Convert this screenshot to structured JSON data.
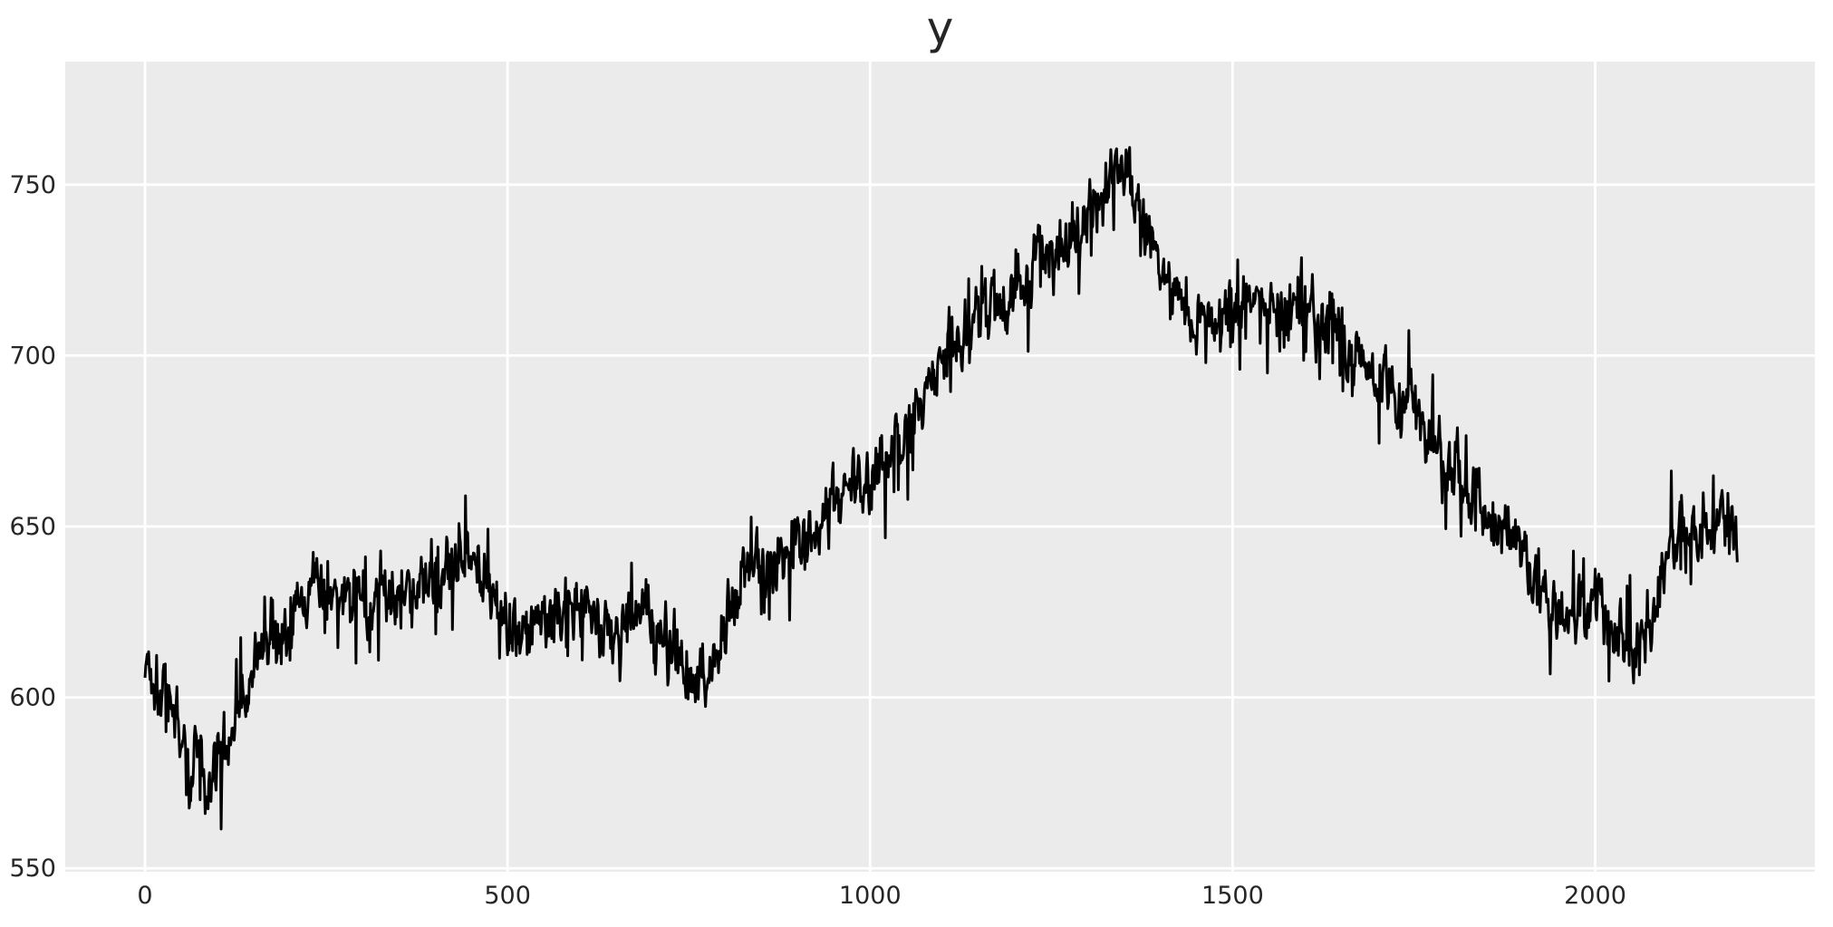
{
  "chart_data": {
    "type": "line",
    "title": "y",
    "xlabel": "",
    "ylabel": "",
    "legend": null,
    "grid_on": true,
    "x_ticks": [
      0,
      500,
      1000,
      1500,
      2000
    ],
    "y_ticks": [
      550,
      600,
      650,
      700,
      750
    ],
    "xlim": [
      -110,
      2303
    ],
    "ylim": [
      549,
      786
    ],
    "n_points": 2197,
    "x_start": 0,
    "x_step": 1,
    "series": [
      {
        "name": "y",
        "color": "#000000",
        "linewidth": 3,
        "trend_keypoints": [
          [
            0,
            612
          ],
          [
            15,
            606
          ],
          [
            30,
            600
          ],
          [
            45,
            594
          ],
          [
            55,
            585
          ],
          [
            62,
            574
          ],
          [
            70,
            583
          ],
          [
            80,
            578
          ],
          [
            90,
            572
          ],
          [
            100,
            582
          ],
          [
            115,
            590
          ],
          [
            130,
            598
          ],
          [
            145,
            605
          ],
          [
            160,
            612
          ],
          [
            175,
            616
          ],
          [
            190,
            618
          ],
          [
            205,
            622
          ],
          [
            220,
            628
          ],
          [
            235,
            632
          ],
          [
            250,
            626
          ],
          [
            265,
            628
          ],
          [
            280,
            632
          ],
          [
            295,
            630
          ],
          [
            310,
            628
          ],
          [
            325,
            633
          ],
          [
            340,
            630
          ],
          [
            355,
            628
          ],
          [
            370,
            630
          ],
          [
            385,
            633
          ],
          [
            400,
            636
          ],
          [
            415,
            638
          ],
          [
            430,
            643
          ],
          [
            445,
            646
          ],
          [
            460,
            640
          ],
          [
            475,
            635
          ],
          [
            490,
            628
          ],
          [
            505,
            620
          ],
          [
            520,
            616
          ],
          [
            535,
            620
          ],
          [
            550,
            624
          ],
          [
            565,
            626
          ],
          [
            580,
            628
          ],
          [
            595,
            630
          ],
          [
            610,
            628
          ],
          [
            625,
            624
          ],
          [
            640,
            620
          ],
          [
            655,
            617
          ],
          [
            670,
            622
          ],
          [
            685,
            626
          ],
          [
            700,
            620
          ],
          [
            715,
            617
          ],
          [
            730,
            613
          ],
          [
            745,
            610
          ],
          [
            760,
            607
          ],
          [
            775,
            612
          ],
          [
            790,
            616
          ],
          [
            805,
            625
          ],
          [
            820,
            632
          ],
          [
            835,
            638
          ],
          [
            850,
            641
          ],
          [
            865,
            637
          ],
          [
            880,
            641
          ],
          [
            895,
            644
          ],
          [
            910,
            647
          ],
          [
            925,
            650
          ],
          [
            940,
            653
          ],
          [
            955,
            658
          ],
          [
            970,
            663
          ],
          [
            985,
            660
          ],
          [
            1000,
            665
          ],
          [
            1015,
            668
          ],
          [
            1030,
            672
          ],
          [
            1045,
            677
          ],
          [
            1060,
            682
          ],
          [
            1075,
            688
          ],
          [
            1090,
            695
          ],
          [
            1105,
            700
          ],
          [
            1120,
            704
          ],
          [
            1135,
            708
          ],
          [
            1150,
            712
          ],
          [
            1165,
            716
          ],
          [
            1180,
            713
          ],
          [
            1195,
            718
          ],
          [
            1210,
            722
          ],
          [
            1225,
            727
          ],
          [
            1240,
            730
          ],
          [
            1255,
            729
          ],
          [
            1270,
            732
          ],
          [
            1285,
            737
          ],
          [
            1300,
            742
          ],
          [
            1315,
            748
          ],
          [
            1330,
            753
          ],
          [
            1345,
            757
          ],
          [
            1355,
            752
          ],
          [
            1370,
            744
          ],
          [
            1385,
            737
          ],
          [
            1400,
            729
          ],
          [
            1415,
            722
          ],
          [
            1430,
            716
          ],
          [
            1445,
            710
          ],
          [
            1460,
            707
          ],
          [
            1475,
            709
          ],
          [
            1490,
            711
          ],
          [
            1505,
            713
          ],
          [
            1520,
            716
          ],
          [
            1535,
            718
          ],
          [
            1550,
            714
          ],
          [
            1565,
            711
          ],
          [
            1580,
            713
          ],
          [
            1595,
            715
          ],
          [
            1610,
            712
          ],
          [
            1625,
            710
          ],
          [
            1640,
            707
          ],
          [
            1655,
            703
          ],
          [
            1670,
            699
          ],
          [
            1685,
            696
          ],
          [
            1700,
            693
          ],
          [
            1715,
            690
          ],
          [
            1730,
            687
          ],
          [
            1745,
            684
          ],
          [
            1760,
            680
          ],
          [
            1775,
            676
          ],
          [
            1790,
            672
          ],
          [
            1805,
            668
          ],
          [
            1820,
            663
          ],
          [
            1835,
            658
          ],
          [
            1850,
            654
          ],
          [
            1865,
            652
          ],
          [
            1880,
            649
          ],
          [
            1895,
            644
          ],
          [
            1910,
            638
          ],
          [
            1925,
            633
          ],
          [
            1940,
            629
          ],
          [
            1955,
            627
          ],
          [
            1970,
            625
          ],
          [
            1985,
            627
          ],
          [
            2000,
            630
          ],
          [
            2015,
            624
          ],
          [
            2030,
            619
          ],
          [
            2045,
            616
          ],
          [
            2060,
            614
          ],
          [
            2075,
            621
          ],
          [
            2090,
            632
          ],
          [
            2105,
            642
          ],
          [
            2120,
            650
          ],
          [
            2135,
            648
          ],
          [
            2150,
            645
          ],
          [
            2165,
            648
          ],
          [
            2180,
            652
          ],
          [
            2196,
            643
          ]
        ],
        "noise": {
          "seed": 1337,
          "amplitude": 10,
          "persistence": 0.5,
          "spike_prob": 0.07,
          "spike_min": 5,
          "spike_range": 13
        }
      }
    ],
    "style": {
      "figure_bg": "#ffffff",
      "plot_bg": "#ebebeb",
      "grid_color": "#ffffff",
      "grid_linewidth": 2.8,
      "text_color": "#262626",
      "tick_fontsize": 27,
      "title_fontsize": 50
    }
  },
  "layout_labels": {
    "x_tick_labels": [
      "0",
      "500",
      "1000",
      "1500",
      "2000"
    ],
    "y_tick_labels": [
      "550",
      "600",
      "650",
      "700",
      "750"
    ]
  }
}
